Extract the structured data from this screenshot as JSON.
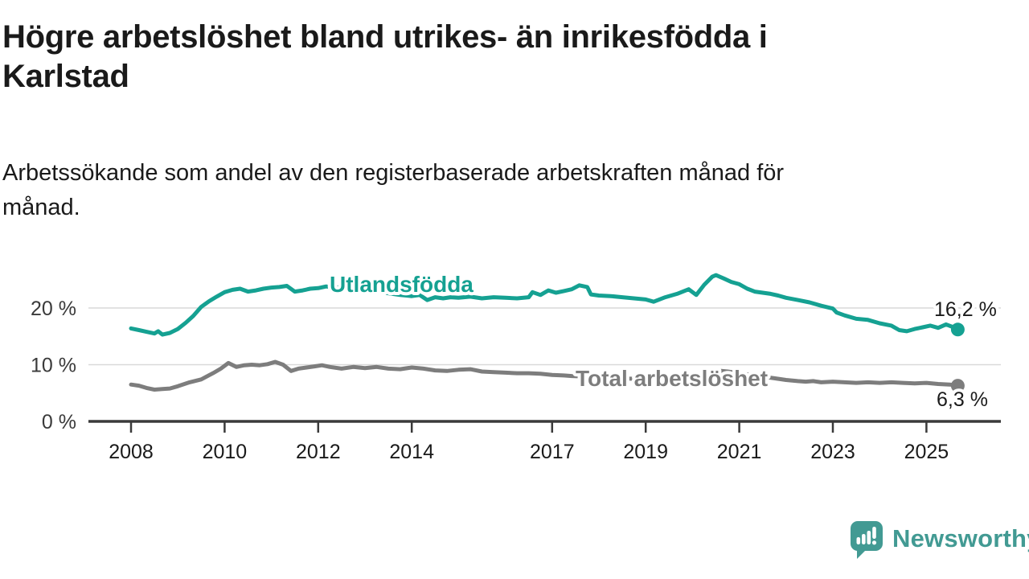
{
  "header": {
    "title_lines": [
      "Högre arbetslöshet bland utrikes- än inrikesfödda i",
      "Karlstad"
    ],
    "subtitle_lines": [
      "Arbetssökande som andel av den registerbaserade arbetskraften månad för",
      "månad."
    ]
  },
  "chart_data": {
    "type": "line",
    "title": "Högre arbetslöshet bland utrikes- än inrikesfödda i Karlstad",
    "subtitle": "Arbetssökande som andel av den registerbaserade arbetskraften månad för månad.",
    "x_unit": "year (monthly observations)",
    "y_unit": "percent",
    "xlim": [
      2007.1,
      2026.6
    ],
    "ylim": [
      0,
      27
    ],
    "grid_y": [
      10,
      20
    ],
    "grid_color": "#d9d9d9",
    "axis_color": "#3a3a3a",
    "text_color": "#1a1a1a",
    "legend_position": "inline-labels",
    "yticks": [
      {
        "value": 0,
        "label": "0 %"
      },
      {
        "value": 10,
        "label": "10 %"
      },
      {
        "value": 20,
        "label": "20 %"
      }
    ],
    "xticks": [
      {
        "value": 2008,
        "label": "2008"
      },
      {
        "value": 2010,
        "label": "2010"
      },
      {
        "value": 2012,
        "label": "2012"
      },
      {
        "value": 2014,
        "label": "2014"
      },
      {
        "value": 2017,
        "label": "2017"
      },
      {
        "value": 2019,
        "label": "2019"
      },
      {
        "value": 2021,
        "label": "2021"
      },
      {
        "value": 2023,
        "label": "2023"
      },
      {
        "value": 2025,
        "label": "2025"
      }
    ],
    "series": [
      {
        "name": "Utlandsfödda",
        "color": "#15a192",
        "end_value": 16.2,
        "end_label": "16,2 %",
        "points": [
          [
            2008.0,
            16.4
          ],
          [
            2008.17,
            16.1
          ],
          [
            2008.33,
            15.8
          ],
          [
            2008.5,
            15.5
          ],
          [
            2008.58,
            15.9
          ],
          [
            2008.67,
            15.3
          ],
          [
            2008.83,
            15.6
          ],
          [
            2009.0,
            16.3
          ],
          [
            2009.17,
            17.4
          ],
          [
            2009.33,
            18.6
          ],
          [
            2009.5,
            20.2
          ],
          [
            2009.67,
            21.2
          ],
          [
            2009.83,
            22.0
          ],
          [
            2010.0,
            22.8
          ],
          [
            2010.17,
            23.2
          ],
          [
            2010.33,
            23.4
          ],
          [
            2010.5,
            22.9
          ],
          [
            2010.67,
            23.1
          ],
          [
            2010.83,
            23.4
          ],
          [
            2011.0,
            23.6
          ],
          [
            2011.17,
            23.7
          ],
          [
            2011.33,
            23.9
          ],
          [
            2011.5,
            22.9
          ],
          [
            2011.67,
            23.1
          ],
          [
            2011.83,
            23.4
          ],
          [
            2012.0,
            23.5
          ],
          [
            2012.17,
            23.8
          ],
          [
            2012.33,
            23.6
          ],
          [
            2012.5,
            23.7
          ],
          [
            2012.67,
            23.5
          ],
          [
            2012.83,
            23.3
          ],
          [
            2013.0,
            23.2
          ],
          [
            2013.25,
            22.9
          ],
          [
            2013.5,
            22.6
          ],
          [
            2013.75,
            22.3
          ],
          [
            2014.0,
            22.1
          ],
          [
            2014.17,
            22.3
          ],
          [
            2014.33,
            21.4
          ],
          [
            2014.5,
            21.9
          ],
          [
            2014.67,
            21.7
          ],
          [
            2014.83,
            21.9
          ],
          [
            2015.0,
            21.8
          ],
          [
            2015.25,
            22.0
          ],
          [
            2015.5,
            21.7
          ],
          [
            2015.75,
            21.9
          ],
          [
            2016.0,
            21.8
          ],
          [
            2016.25,
            21.7
          ],
          [
            2016.5,
            21.9
          ],
          [
            2016.58,
            22.8
          ],
          [
            2016.75,
            22.3
          ],
          [
            2016.92,
            23.1
          ],
          [
            2017.08,
            22.7
          ],
          [
            2017.25,
            23.0
          ],
          [
            2017.42,
            23.3
          ],
          [
            2017.58,
            24.0
          ],
          [
            2017.75,
            23.7
          ],
          [
            2017.83,
            22.4
          ],
          [
            2018.0,
            22.2
          ],
          [
            2018.25,
            22.1
          ],
          [
            2018.5,
            21.9
          ],
          [
            2018.75,
            21.7
          ],
          [
            2019.0,
            21.5
          ],
          [
            2019.17,
            21.1
          ],
          [
            2019.42,
            21.9
          ],
          [
            2019.67,
            22.5
          ],
          [
            2019.92,
            23.3
          ],
          [
            2020.08,
            22.3
          ],
          [
            2020.25,
            24.1
          ],
          [
            2020.42,
            25.5
          ],
          [
            2020.5,
            25.8
          ],
          [
            2020.67,
            25.2
          ],
          [
            2020.83,
            24.6
          ],
          [
            2021.0,
            24.2
          ],
          [
            2021.17,
            23.4
          ],
          [
            2021.33,
            22.9
          ],
          [
            2021.5,
            22.7
          ],
          [
            2021.67,
            22.5
          ],
          [
            2021.83,
            22.2
          ],
          [
            2022.0,
            21.8
          ],
          [
            2022.25,
            21.4
          ],
          [
            2022.5,
            21.0
          ],
          [
            2022.75,
            20.4
          ],
          [
            2023.0,
            19.9
          ],
          [
            2023.08,
            19.2
          ],
          [
            2023.25,
            18.7
          ],
          [
            2023.5,
            18.1
          ],
          [
            2023.75,
            17.9
          ],
          [
            2024.0,
            17.3
          ],
          [
            2024.25,
            16.9
          ],
          [
            2024.42,
            16.1
          ],
          [
            2024.58,
            15.9
          ],
          [
            2024.75,
            16.3
          ],
          [
            2024.92,
            16.6
          ],
          [
            2025.08,
            16.9
          ],
          [
            2025.25,
            16.5
          ],
          [
            2025.42,
            17.1
          ],
          [
            2025.58,
            16.6
          ],
          [
            2025.67,
            16.2
          ]
        ]
      },
      {
        "name": "Total arbetslöshet",
        "color": "#7d7d7d",
        "end_value": 6.3,
        "end_label": "6,3 %",
        "points": [
          [
            2008.0,
            6.5
          ],
          [
            2008.17,
            6.3
          ],
          [
            2008.33,
            5.9
          ],
          [
            2008.5,
            5.6
          ],
          [
            2008.67,
            5.7
          ],
          [
            2008.83,
            5.8
          ],
          [
            2009.0,
            6.2
          ],
          [
            2009.25,
            6.9
          ],
          [
            2009.5,
            7.4
          ],
          [
            2009.75,
            8.5
          ],
          [
            2009.92,
            9.3
          ],
          [
            2010.08,
            10.3
          ],
          [
            2010.25,
            9.6
          ],
          [
            2010.42,
            9.9
          ],
          [
            2010.58,
            10.0
          ],
          [
            2010.75,
            9.9
          ],
          [
            2010.92,
            10.1
          ],
          [
            2011.08,
            10.5
          ],
          [
            2011.25,
            10.0
          ],
          [
            2011.42,
            8.9
          ],
          [
            2011.58,
            9.3
          ],
          [
            2011.75,
            9.5
          ],
          [
            2011.92,
            9.7
          ],
          [
            2012.08,
            9.9
          ],
          [
            2012.25,
            9.6
          ],
          [
            2012.5,
            9.3
          ],
          [
            2012.75,
            9.6
          ],
          [
            2013.0,
            9.4
          ],
          [
            2013.25,
            9.6
          ],
          [
            2013.5,
            9.3
          ],
          [
            2013.75,
            9.2
          ],
          [
            2014.0,
            9.5
          ],
          [
            2014.25,
            9.3
          ],
          [
            2014.5,
            9.0
          ],
          [
            2014.75,
            8.9
          ],
          [
            2015.0,
            9.1
          ],
          [
            2015.25,
            9.2
          ],
          [
            2015.5,
            8.8
          ],
          [
            2015.75,
            8.7
          ],
          [
            2016.0,
            8.6
          ],
          [
            2016.25,
            8.5
          ],
          [
            2016.5,
            8.5
          ],
          [
            2016.75,
            8.4
          ],
          [
            2017.0,
            8.2
          ],
          [
            2017.25,
            8.1
          ],
          [
            2017.42,
            8.0
          ],
          [
            2017.75,
            7.9
          ],
          [
            2018.0,
            7.8
          ],
          [
            2018.25,
            7.7
          ],
          [
            2018.5,
            7.6
          ],
          [
            2018.75,
            7.5
          ],
          [
            2019.0,
            7.4
          ],
          [
            2019.25,
            7.3
          ],
          [
            2019.5,
            7.4
          ],
          [
            2019.75,
            7.6
          ],
          [
            2020.0,
            7.9
          ],
          [
            2020.25,
            8.6
          ],
          [
            2020.5,
            9.0
          ],
          [
            2020.75,
            8.8
          ],
          [
            2021.0,
            8.5
          ],
          [
            2021.25,
            8.2
          ],
          [
            2021.5,
            7.9
          ],
          [
            2021.75,
            7.6
          ],
          [
            2022.0,
            7.3
          ],
          [
            2022.25,
            7.1
          ],
          [
            2022.42,
            7.0
          ],
          [
            2022.58,
            7.1
          ],
          [
            2022.75,
            6.9
          ],
          [
            2023.0,
            7.0
          ],
          [
            2023.25,
            6.9
          ],
          [
            2023.5,
            6.8
          ],
          [
            2023.75,
            6.9
          ],
          [
            2024.0,
            6.8
          ],
          [
            2024.25,
            6.9
          ],
          [
            2024.5,
            6.8
          ],
          [
            2024.75,
            6.7
          ],
          [
            2025.0,
            6.8
          ],
          [
            2025.25,
            6.6
          ],
          [
            2025.5,
            6.5
          ],
          [
            2025.67,
            6.3
          ]
        ]
      }
    ]
  },
  "footer": {
    "brand": "Newsworthy",
    "brand_color": "#429a93",
    "logo_icon": "newsworthy-chart-bubble-icon"
  }
}
